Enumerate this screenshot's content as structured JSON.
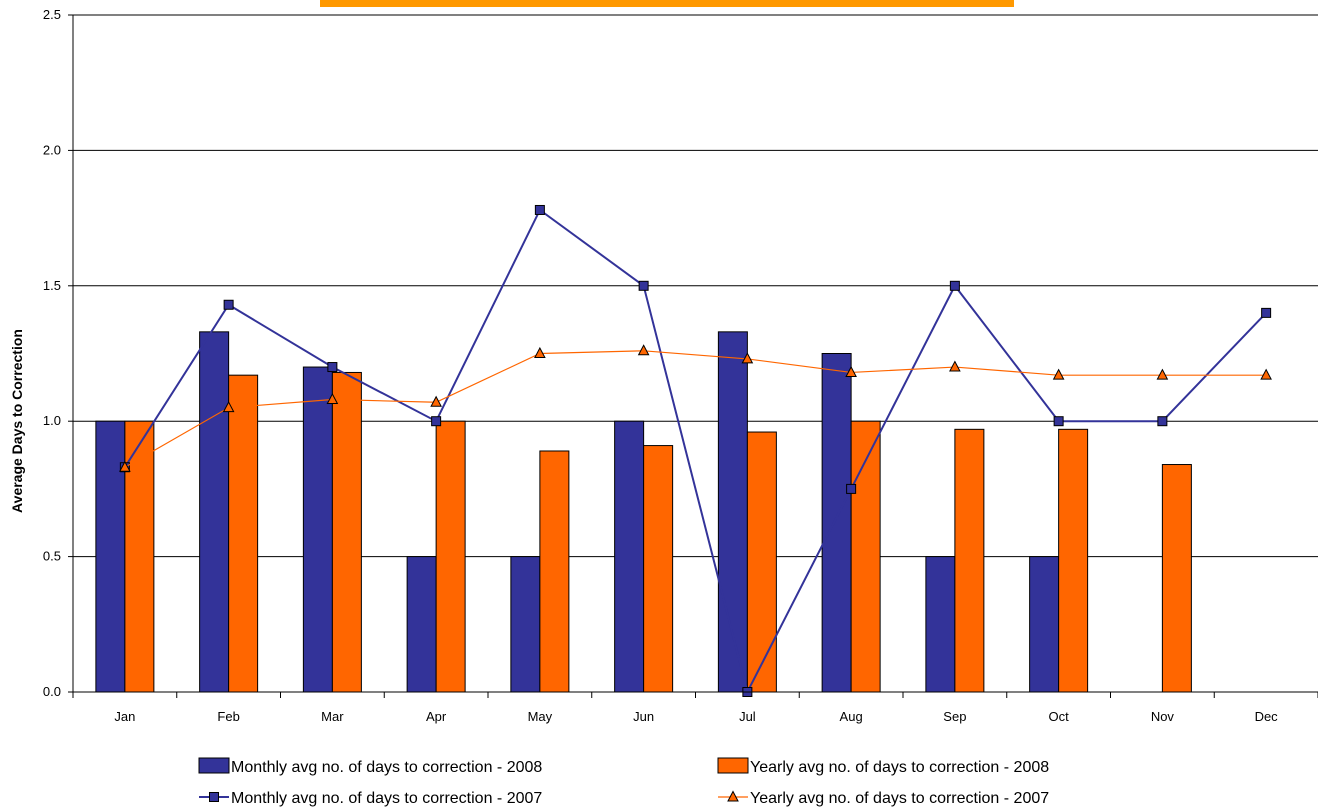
{
  "chart_data": {
    "type": "bar",
    "categories": [
      "Jan",
      "Feb",
      "Mar",
      "Apr",
      "May",
      "Jun",
      "Jul",
      "Aug",
      "Sep",
      "Oct",
      "Nov",
      "Dec"
    ],
    "ylabel": "Average Days to Correction",
    "xlabel": "",
    "ylim": [
      0,
      2.5
    ],
    "yticks": [
      "0.0",
      "0.5",
      "1.0",
      "1.5",
      "2.0",
      "2.5"
    ],
    "grid": true,
    "legend_position": "bottom",
    "series": [
      {
        "name": "Monthly avg no. of days to correction - 2008",
        "kind": "bar",
        "color": "#333399",
        "values": [
          1.0,
          1.33,
          1.2,
          0.5,
          0.5,
          1.0,
          1.33,
          1.25,
          0.5,
          0.5,
          null,
          null
        ]
      },
      {
        "name": "Yearly avg no. of days to correction - 2008",
        "kind": "bar",
        "color": "#FF6600",
        "values": [
          1.0,
          1.17,
          1.18,
          1.0,
          0.89,
          0.91,
          0.96,
          1.0,
          0.97,
          0.97,
          0.84,
          null
        ]
      },
      {
        "name": "Monthly avg no. of days to correction - 2007",
        "kind": "line",
        "marker": "square",
        "color": "#333399",
        "values": [
          0.83,
          1.43,
          1.2,
          1.0,
          1.78,
          1.5,
          0.0,
          0.75,
          1.5,
          1.0,
          1.0,
          1.4
        ]
      },
      {
        "name": "Yearly avg no. of days to correction - 2007",
        "kind": "line",
        "marker": "triangle",
        "color": "#FF6600",
        "values": [
          0.83,
          1.05,
          1.08,
          1.07,
          1.25,
          1.26,
          1.23,
          1.18,
          1.2,
          1.17,
          1.17,
          1.17
        ]
      }
    ]
  },
  "banner_color": "#FF9900"
}
